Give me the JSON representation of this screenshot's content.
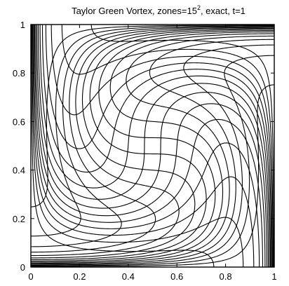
{
  "chart_data": {
    "type": "mesh",
    "title": {
      "prefix": "Taylor Green Vortex, zones=15",
      "superscript": "2",
      "suffix": ", exact, t=1"
    },
    "xlabel": "",
    "ylabel": "",
    "xlim": [
      0,
      1
    ],
    "ylim": [
      0,
      1
    ],
    "xticks": [
      "0",
      "0.2",
      "0.4",
      "0.6",
      "0.8",
      "1"
    ],
    "yticks": [
      "0",
      "0.2",
      "0.4",
      "0.6",
      "0.8",
      "1"
    ],
    "zones": 15,
    "time": 1,
    "grid": false,
    "line_color": "#000000"
  }
}
